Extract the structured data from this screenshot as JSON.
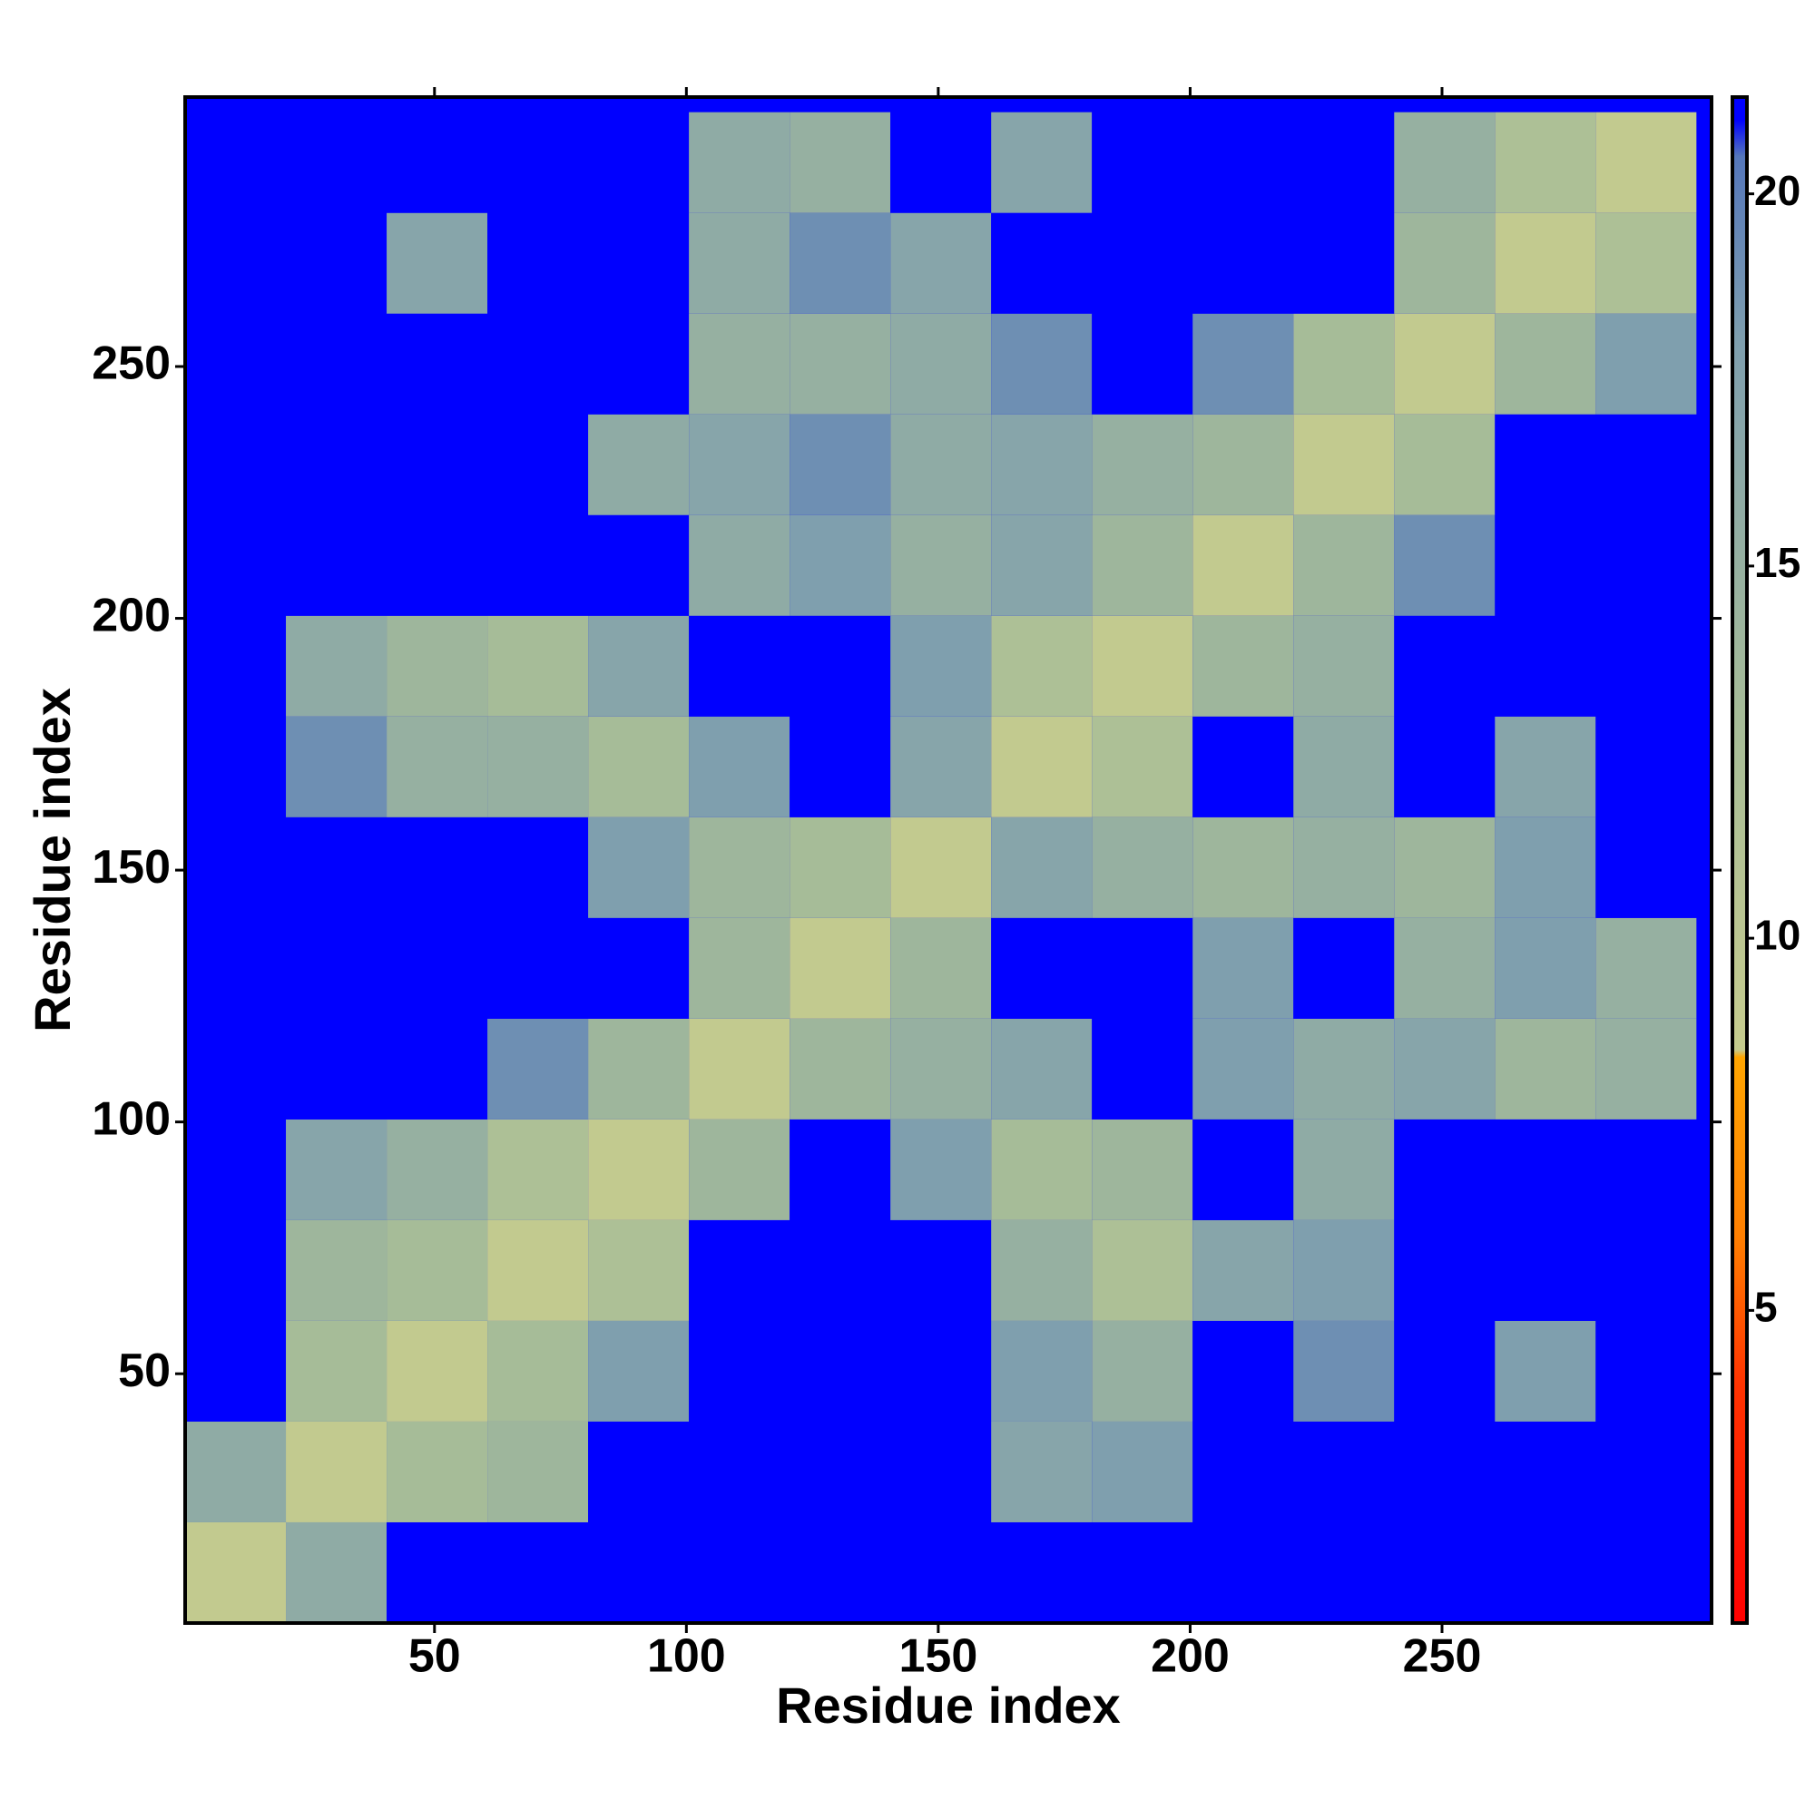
{
  "chart_data": {
    "type": "heatmap",
    "xlabel": "Residue index",
    "ylabel": "Residue index",
    "xlim": [
      0.5,
      303.5
    ],
    "ylim": [
      0.5,
      303.5
    ],
    "xticks": [
      50,
      100,
      150,
      200,
      250
    ],
    "yticks": [
      50,
      100,
      150,
      200,
      250
    ],
    "xbins": [
      0.5,
      20.5,
      40.5,
      60.5,
      80.5,
      100.5,
      120.5,
      140.5,
      160.5,
      180.5,
      200.5,
      220.5,
      240.5,
      260.5,
      280.5,
      300.5
    ],
    "ybins": [
      0.5,
      20.5,
      40.5,
      60.5,
      80.5,
      100.5,
      120.5,
      140.5,
      160.5,
      180.5,
      200.5,
      220.5,
      240.5,
      260.5,
      280.5,
      300.5
    ],
    "values": [
      [
        9,
        16,
        21,
        21,
        21,
        21,
        21,
        21,
        21,
        21,
        21,
        21,
        21,
        21,
        21
      ],
      [
        16,
        9,
        13,
        14,
        21,
        21,
        21,
        21,
        17,
        18,
        21,
        21,
        21,
        21,
        21
      ],
      [
        21,
        13,
        9,
        13,
        18,
        21,
        21,
        21,
        18,
        15,
        21,
        19,
        21,
        18,
        21
      ],
      [
        21,
        14,
        13,
        9,
        12,
        21,
        21,
        21,
        15,
        12,
        17,
        18,
        21,
        21,
        21
      ],
      [
        21,
        17,
        15,
        12,
        9,
        14,
        21,
        18,
        13,
        14,
        21,
        16,
        21,
        21,
        21
      ],
      [
        21,
        21,
        21,
        19,
        14,
        9,
        14,
        15,
        17,
        21,
        18,
        16,
        17,
        14,
        15
      ],
      [
        21,
        21,
        21,
        21,
        21,
        14,
        9,
        14,
        21,
        21,
        18,
        21,
        15,
        18,
        15
      ],
      [
        21,
        21,
        21,
        21,
        18,
        14,
        13,
        9,
        17,
        15,
        14,
        15,
        14,
        18,
        21
      ],
      [
        21,
        19,
        15,
        15,
        13,
        18,
        21,
        17,
        9,
        12,
        21,
        16,
        21,
        17,
        21
      ],
      [
        21,
        16,
        14,
        13,
        17,
        21,
        21,
        18,
        12,
        9,
        14,
        15,
        21,
        21,
        21
      ],
      [
        21,
        21,
        21,
        21,
        21,
        16,
        18,
        15,
        17,
        14,
        9,
        14,
        19,
        21,
        21
      ],
      [
        21,
        21,
        21,
        21,
        16,
        17,
        19,
        16,
        17,
        15,
        14,
        9,
        13,
        21,
        21
      ],
      [
        21,
        21,
        21,
        21,
        21,
        15,
        15,
        16,
        19,
        21,
        19,
        13,
        9,
        14,
        18
      ],
      [
        21,
        21,
        17,
        21,
        21,
        16,
        19,
        17,
        21,
        21,
        21,
        21,
        14,
        9,
        12
      ],
      [
        21,
        21,
        21,
        21,
        21,
        16,
        15,
        21,
        17,
        21,
        21,
        21,
        15,
        12,
        9
      ]
    ],
    "clim": [
      0.8,
      21.3
    ],
    "cticks": [
      5,
      10,
      15,
      20
    ],
    "colorscale": [
      [
        0.8,
        "#ff0000"
      ],
      [
        4,
        "#ff3300"
      ],
      [
        6,
        "#ff7f00"
      ],
      [
        8.4,
        "#ffa500"
      ],
      [
        8.5,
        "#c6cc8e"
      ],
      [
        13,
        "#a6bc98"
      ],
      [
        18,
        "#7f9fae"
      ],
      [
        20.5,
        "#5577bb"
      ],
      [
        21,
        "#0000ff"
      ],
      [
        21.3,
        "#0000ff"
      ]
    ]
  }
}
